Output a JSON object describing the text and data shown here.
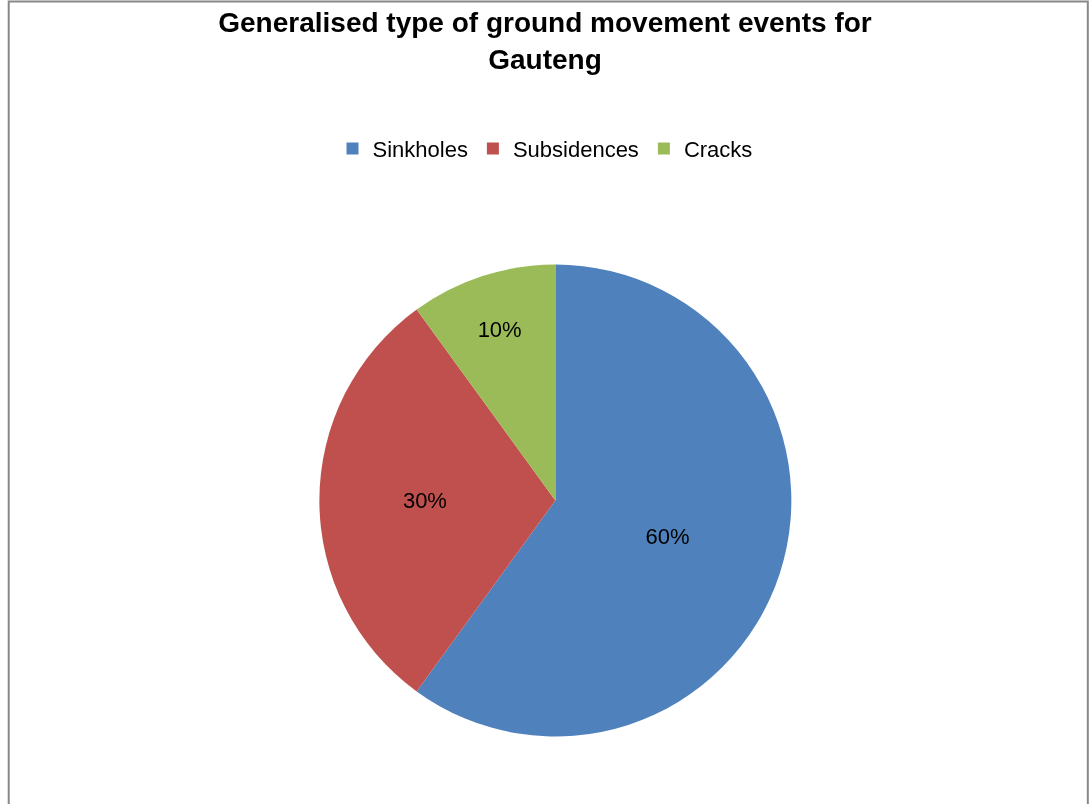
{
  "chart_data": {
    "type": "pie",
    "title": "Generalised type of ground movement events for Gauteng",
    "categories": [
      "Sinkholes",
      "Subsidences",
      "Cracks"
    ],
    "values": [
      60,
      30,
      10
    ],
    "colors": [
      "#4f81bd",
      "#c0504d",
      "#9bbb59"
    ],
    "value_labels": [
      "60%",
      "30%",
      "10%"
    ],
    "legend": "top"
  }
}
